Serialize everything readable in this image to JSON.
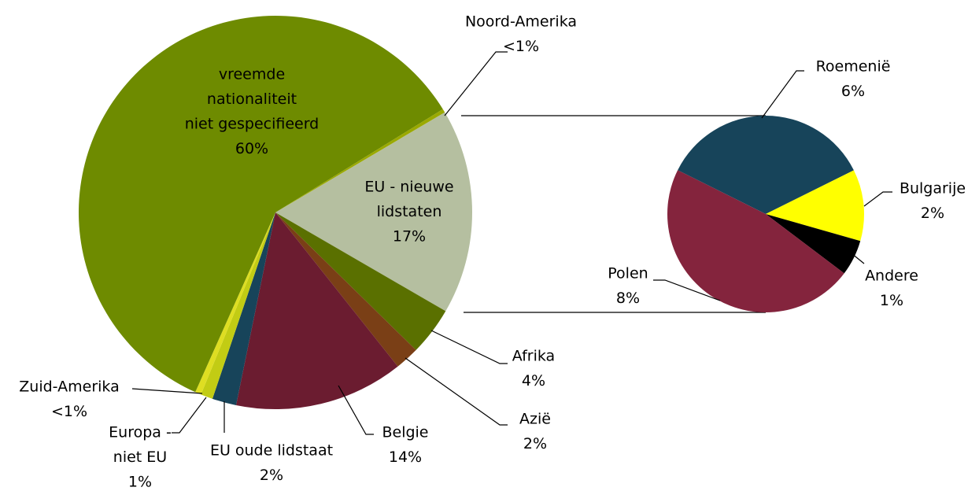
{
  "chart_data": [
    {
      "type": "pie",
      "categories": [
        [
          "EU - nieuwe",
          "lidstaten"
        ],
        [
          "Afrika"
        ],
        [
          "Azië"
        ],
        [
          "Belgie"
        ],
        [
          "EU oude lidstaat"
        ],
        [
          "Europa -",
          "niet EU"
        ],
        [
          "Zuid-Amerika"
        ],
        [
          "vreemde",
          "nationaliteit",
          "niet gespecifieerd"
        ],
        [
          "Noord-Amerika"
        ]
      ],
      "values": [
        17,
        4,
        2,
        14,
        2,
        1,
        0.5,
        60,
        0.3
      ],
      "value_labels": [
        "17%",
        "4%",
        "2%",
        "14%",
        "2%",
        "1%",
        "<1%",
        "60%",
        "<1%"
      ],
      "colors": [
        "#b5bfa0",
        "#5a7000",
        "#7a3f16",
        "#6b1c30",
        "#17445a",
        "#c2cc14",
        "#dede22",
        "#6e8b00",
        "#9aa900"
      ]
    },
    {
      "type": "pie",
      "categories": [
        [
          "Roemenië"
        ],
        [
          "Bulgarije"
        ],
        [
          "Andere"
        ],
        [
          "Polen"
        ]
      ],
      "values": [
        6,
        2,
        1,
        8
      ],
      "value_labels": [
        "6%",
        "2%",
        "1%",
        "8%"
      ],
      "colors": [
        "#17445a",
        "#ffff00",
        "#000000",
        "#84243d"
      ]
    }
  ]
}
